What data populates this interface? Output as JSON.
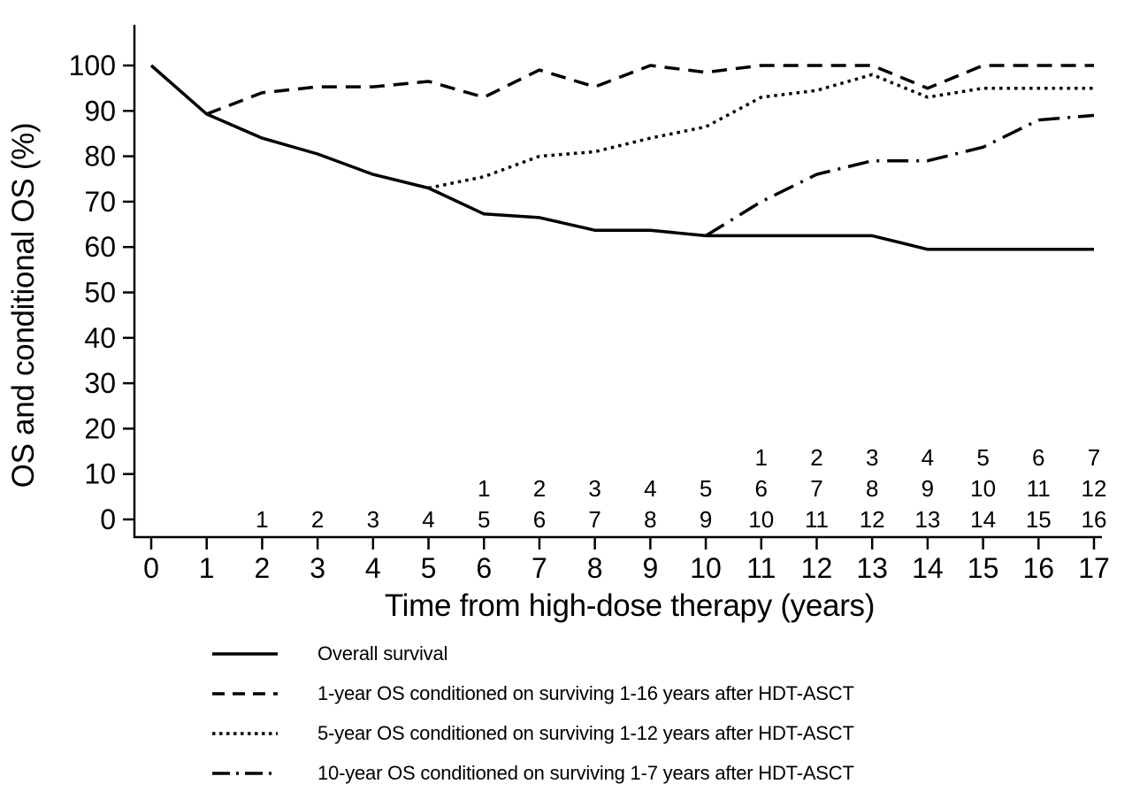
{
  "figure": {
    "background": "#ffffff",
    "line_color": "#000000"
  },
  "chart_data": {
    "type": "line",
    "title": "",
    "xlabel": "Time from high-dose therapy (years)",
    "ylabel": "OS and conditional OS (%)",
    "xlim": [
      0,
      17
    ],
    "ylim": [
      0,
      100
    ],
    "x_ticks": [
      "0",
      "1",
      "2",
      "3",
      "4",
      "5",
      "6",
      "7",
      "8",
      "9",
      "10",
      "11",
      "12",
      "13",
      "14",
      "15",
      "16",
      "17"
    ],
    "y_ticks": [
      "0",
      "10",
      "20",
      "30",
      "40",
      "50",
      "60",
      "70",
      "80",
      "90",
      "100"
    ],
    "grid": false,
    "legend_position": "below-left",
    "series": [
      {
        "id": "overall-survival",
        "name": "Overall survival",
        "style": "solid",
        "x_start": 0,
        "values": [
          100,
          89.3,
          84,
          80.5,
          76,
          73,
          67.3,
          66.5,
          63.7,
          63.7,
          62.5,
          62.5,
          62.5,
          62.5,
          59.5,
          59.5,
          59.5,
          59.5
        ]
      },
      {
        "id": "os-1yr-conditional",
        "name": "1-year OS conditioned on surviving 1-16 years after HDT-ASCT",
        "style": "dashed",
        "x_start": 1,
        "values": [
          89.3,
          94,
          95.3,
          95.3,
          96.5,
          93,
          99,
          95.3,
          100,
          98.5,
          100,
          100,
          100,
          95,
          100,
          100,
          100
        ]
      },
      {
        "id": "os-5yr-conditional",
        "name": "5-year OS conditioned on surviving 1-12 years after HDT-ASCT",
        "style": "dotted",
        "x_start": 5,
        "values": [
          73,
          75.5,
          80,
          81,
          84,
          86.5,
          93,
          94.5,
          98,
          93,
          95,
          95,
          95
        ]
      },
      {
        "id": "os-10yr-conditional",
        "name": "10-year OS conditioned on surviving 1-7 years after HDT-ASCT",
        "style": "dashdot",
        "x_start": 10,
        "values": [
          62.5,
          70,
          76,
          79,
          79,
          82,
          88,
          89
        ]
      }
    ],
    "at_risk_rows": [
      {
        "series_id": "os-10yr-conditional",
        "start_year": 11,
        "labels": [
          "1",
          "2",
          "3",
          "4",
          "5",
          "6",
          "7"
        ]
      },
      {
        "series_id": "os-5yr-conditional",
        "start_year": 6,
        "labels": [
          "1",
          "2",
          "3",
          "4",
          "5",
          "6",
          "7",
          "8",
          "9",
          "10",
          "11",
          "12"
        ]
      },
      {
        "series_id": "os-1yr-conditional",
        "start_year": 2,
        "labels": [
          "1",
          "2",
          "3",
          "4",
          "5",
          "6",
          "7",
          "8",
          "9",
          "10",
          "11",
          "12",
          "13",
          "14",
          "15",
          "16"
        ]
      }
    ]
  }
}
